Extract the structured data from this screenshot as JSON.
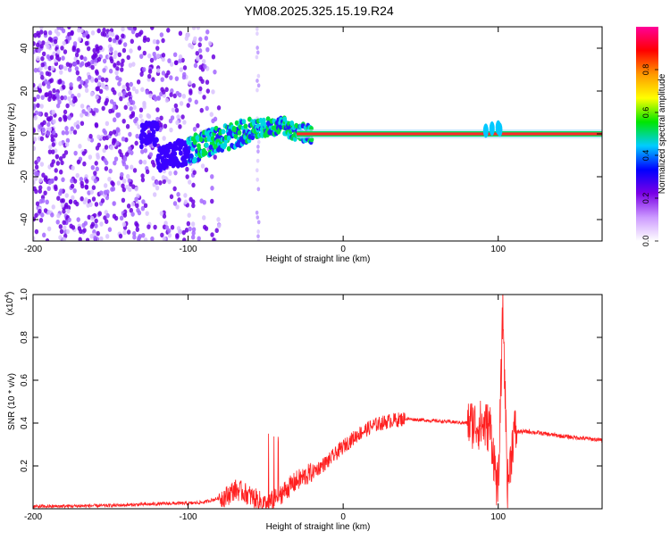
{
  "title": "YM08.2025.325.15.19.R24",
  "chart_data": [
    {
      "type": "heatmap",
      "xlabel": "Height of straight line (km)",
      "ylabel": "Frequency (Hz)",
      "xlim": [
        -200,
        167
      ],
      "ylim": [
        -50,
        50
      ],
      "xticks": [
        -200,
        -100,
        0,
        100
      ],
      "yticks": [
        -40,
        -20,
        0,
        20,
        40
      ],
      "ridge_frequency_hz": 0,
      "noise_extent_km": [
        -200,
        -85
      ],
      "isolated_spike_km": -55,
      "ridge": [
        {
          "x": -120,
          "y": -13
        },
        {
          "x": -110,
          "y": -10
        },
        {
          "x": -100,
          "y": -8
        },
        {
          "x": -90,
          "y": -5
        },
        {
          "x": -80,
          "y": -3
        },
        {
          "x": -70,
          "y": -1
        },
        {
          "x": -60,
          "y": 2
        },
        {
          "x": -50,
          "y": 3
        },
        {
          "x": -40,
          "y": 4
        },
        {
          "x": -30,
          "y": 1
        },
        {
          "x": -20,
          "y": 0
        },
        {
          "x": 167,
          "y": 0
        }
      ],
      "colorbar": {
        "label": "Normalized spectral amplitude",
        "range": [
          0,
          1
        ],
        "ticks": [
          "0.0",
          "0.2",
          "0.4",
          "0.6",
          "0.8"
        ],
        "colors": [
          "#ffffff",
          "#cc99ff",
          "#7a00e6",
          "#0000ff",
          "#00ccff",
          "#00e600",
          "#ffff00",
          "#ff9900",
          "#ff0000",
          "#ff0099"
        ]
      }
    },
    {
      "type": "line",
      "xlabel": "Height of straight line (km)",
      "ylabel": "SNR (10 * v/v)",
      "multiplier_label": "(x10",
      "multiplier_exp": "4",
      "multiplier_close": ")",
      "xlim": [
        -200,
        167
      ],
      "ylim": [
        0,
        1.0
      ],
      "xticks": [
        -200,
        -100,
        0,
        100
      ],
      "yticks": [
        "0.2",
        "0.4",
        "0.6",
        "0.8",
        "1.0"
      ],
      "color": "#ff2020",
      "x": [
        -200,
        -150,
        -110,
        -100,
        -90,
        -80,
        -75,
        -70,
        -65,
        -60,
        -55,
        -50,
        -45,
        -40,
        -35,
        -30,
        -20,
        -10,
        0,
        10,
        20,
        30,
        40,
        60,
        80,
        90,
        95,
        100,
        103,
        106,
        110,
        120,
        140,
        167
      ],
      "y": [
        0.01,
        0.015,
        0.025,
        0.025,
        0.03,
        0.05,
        0.06,
        0.09,
        0.08,
        0.06,
        0.04,
        0.02,
        0.04,
        0.07,
        0.1,
        0.13,
        0.17,
        0.22,
        0.29,
        0.35,
        0.39,
        0.41,
        0.42,
        0.41,
        0.4,
        0.39,
        0.38,
        0.06,
        0.95,
        0.1,
        0.36,
        0.36,
        0.34,
        0.32
      ]
    }
  ]
}
